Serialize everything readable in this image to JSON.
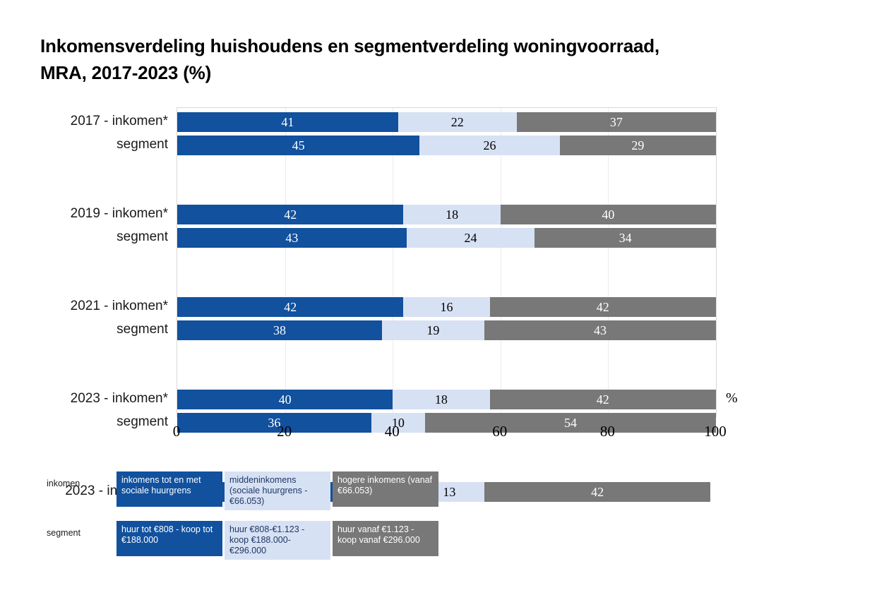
{
  "header": {
    "line1": "Inkomensverdeling huishoudens en segmentverdeling woningvoorraad,",
    "line2": "MRA, 2017-2023 (%)"
  },
  "colors": {
    "dark_blue": "#11519E",
    "light_blue": "#D7E1F4",
    "gray": "#787878",
    "grid": "#D9D9D9",
    "light_box_text": "#1F3864"
  },
  "chart_data": {
    "type": "bar",
    "stacked": true,
    "orientation": "horizontal",
    "title": "Inkomensverdeling huishoudens en segmentverdeling woningvoorraad, MRA, 2017-2023 (%)",
    "xlim": [
      0,
      100
    ],
    "x_ticks": [
      "0",
      "20",
      "40",
      "60",
      "80",
      "100"
    ],
    "x_tick_values": [
      0,
      20,
      40,
      60,
      80,
      100
    ],
    "unit": "%",
    "grid": true,
    "segment_colors": [
      "#11519E",
      "#D7E1F4",
      "#787878"
    ],
    "segment_text_colors": [
      "#ffffff",
      "#000000",
      "#ffffff"
    ],
    "inkomen_series_names": [
      "inkomens tot en met sociale huurgrens",
      "middeninkomens (sociale huurgrens - €66.053)",
      "hogere inkomens (vanaf €66.053)"
    ],
    "segment_series_names": [
      "huur tot €808 - koop tot €188.000",
      "huur €808-€1.123 - koop €188.000-€296.000",
      "huur vanaf €1.123 - koop vanaf €296.000"
    ],
    "rows": [
      {
        "label": "2017 - inkomen*",
        "group": 0,
        "values": [
          41,
          22,
          37
        ]
      },
      {
        "label": "segment",
        "group": 0,
        "values": [
          45,
          26,
          29
        ]
      },
      {
        "label": "2019 - inkomen*",
        "group": 1,
        "values": [
          42,
          18,
          40
        ]
      },
      {
        "label": "segment",
        "group": 1,
        "values": [
          43,
          24,
          34
        ]
      },
      {
        "label": "2021 - inkomen*",
        "group": 2,
        "values": [
          42,
          16,
          42
        ]
      },
      {
        "label": "segment",
        "group": 2,
        "values": [
          38,
          19,
          43
        ]
      },
      {
        "label": "2023 - inkomen*",
        "group": 3,
        "values": [
          40,
          18,
          42
        ]
      },
      {
        "label": "segment",
        "group": 3,
        "values": [
          36,
          10,
          54
        ]
      },
      {
        "label": "2023 - inkomen**",
        "group": 4,
        "values": [
          44,
          13,
          42
        ]
      }
    ]
  },
  "legend": {
    "rows": [
      {
        "label": "inkomen",
        "items": [
          {
            "text": "inkomens tot en met sociale huurgrens",
            "style": "dark"
          },
          {
            "text": "middeninkomens (sociale huurgrens - €66.053)",
            "style": "light"
          },
          {
            "text": "hogere inkomens (vanaf €66.053)",
            "style": "gray"
          }
        ]
      },
      {
        "label": "segment",
        "items": [
          {
            "text": "huur tot €808 - koop tot €188.000",
            "style": "dark"
          },
          {
            "text": "huur €808-€1.123 - koop €188.000-€296.000",
            "style": "light"
          },
          {
            "text": "huur vanaf €1.123 - koop vanaf €296.000",
            "style": "gray"
          }
        ]
      }
    ]
  }
}
